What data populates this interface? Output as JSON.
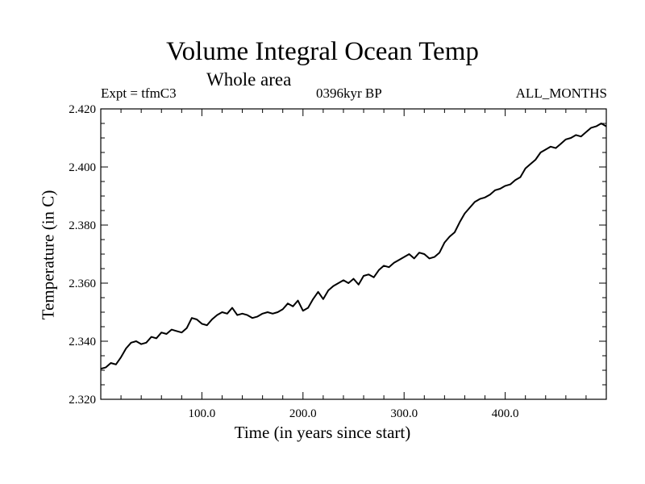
{
  "chart_data": {
    "type": "line",
    "title": "Volume Integral Ocean Temp",
    "subtitle": "Whole area",
    "header_left": "Expt = tfmC3",
    "header_center": "0396kyr BP",
    "header_right": "ALL_MONTHS",
    "xlabel": "Time (in years since start)",
    "ylabel": "Temperature (in C)",
    "xlim": [
      0,
      500
    ],
    "ylim": [
      2.32,
      2.42
    ],
    "xticks": [
      {
        "value": 100,
        "label": "100.0"
      },
      {
        "value": 200,
        "label": "200.0"
      },
      {
        "value": 300,
        "label": "300.0"
      },
      {
        "value": 400,
        "label": "400.0"
      }
    ],
    "yticks": [
      {
        "value": 2.32,
        "label": "2.320"
      },
      {
        "value": 2.34,
        "label": "2.340"
      },
      {
        "value": 2.36,
        "label": "2.360"
      },
      {
        "value": 2.38,
        "label": "2.380"
      },
      {
        "value": 2.4,
        "label": "2.400"
      },
      {
        "value": 2.42,
        "label": "2.420"
      }
    ],
    "series": [
      {
        "name": "Temperature",
        "x": [
          0,
          5,
          10,
          15,
          20,
          25,
          30,
          35,
          40,
          45,
          50,
          55,
          60,
          65,
          70,
          75,
          80,
          85,
          90,
          95,
          100,
          105,
          110,
          115,
          120,
          125,
          130,
          135,
          140,
          145,
          150,
          155,
          160,
          165,
          170,
          175,
          180,
          185,
          190,
          195,
          200,
          205,
          210,
          215,
          220,
          225,
          230,
          235,
          240,
          245,
          250,
          255,
          260,
          265,
          270,
          275,
          280,
          285,
          290,
          295,
          300,
          305,
          310,
          315,
          320,
          325,
          330,
          335,
          340,
          345,
          350,
          355,
          360,
          365,
          370,
          375,
          380,
          385,
          390,
          395,
          400,
          405,
          410,
          415,
          420,
          425,
          430,
          435,
          440,
          445,
          450,
          455,
          460,
          465,
          470,
          475,
          480,
          485,
          490,
          495,
          500
        ],
        "values": [
          2.3305,
          2.331,
          2.3325,
          2.332,
          2.3345,
          2.3375,
          2.3395,
          2.34,
          2.339,
          2.3395,
          2.3415,
          2.341,
          2.343,
          2.3425,
          2.344,
          2.3435,
          2.343,
          2.3445,
          2.348,
          2.3475,
          2.346,
          2.3455,
          2.3475,
          2.349,
          2.35,
          2.3495,
          2.3515,
          2.349,
          2.3495,
          2.349,
          2.348,
          2.3485,
          2.3495,
          2.35,
          2.3495,
          2.35,
          2.351,
          2.353,
          2.352,
          2.354,
          2.3505,
          2.3515,
          2.3545,
          2.357,
          2.3545,
          2.3575,
          2.359,
          2.36,
          2.361,
          2.36,
          2.3615,
          2.3595,
          2.3625,
          2.363,
          2.362,
          2.3645,
          2.366,
          2.3655,
          2.367,
          2.368,
          2.369,
          2.37,
          2.3685,
          2.3705,
          2.37,
          2.3685,
          2.369,
          2.3705,
          2.374,
          2.376,
          2.3775,
          2.381,
          2.384,
          2.386,
          2.388,
          2.389,
          2.3895,
          2.3905,
          2.392,
          2.3925,
          2.3935,
          2.394,
          2.3955,
          2.3965,
          2.3995,
          2.401,
          2.4025,
          2.405,
          2.406,
          2.407,
          2.4065,
          2.408,
          2.4095,
          2.41,
          2.411,
          2.4105,
          2.412,
          2.4135,
          2.414,
          2.415,
          2.414
        ]
      }
    ]
  }
}
